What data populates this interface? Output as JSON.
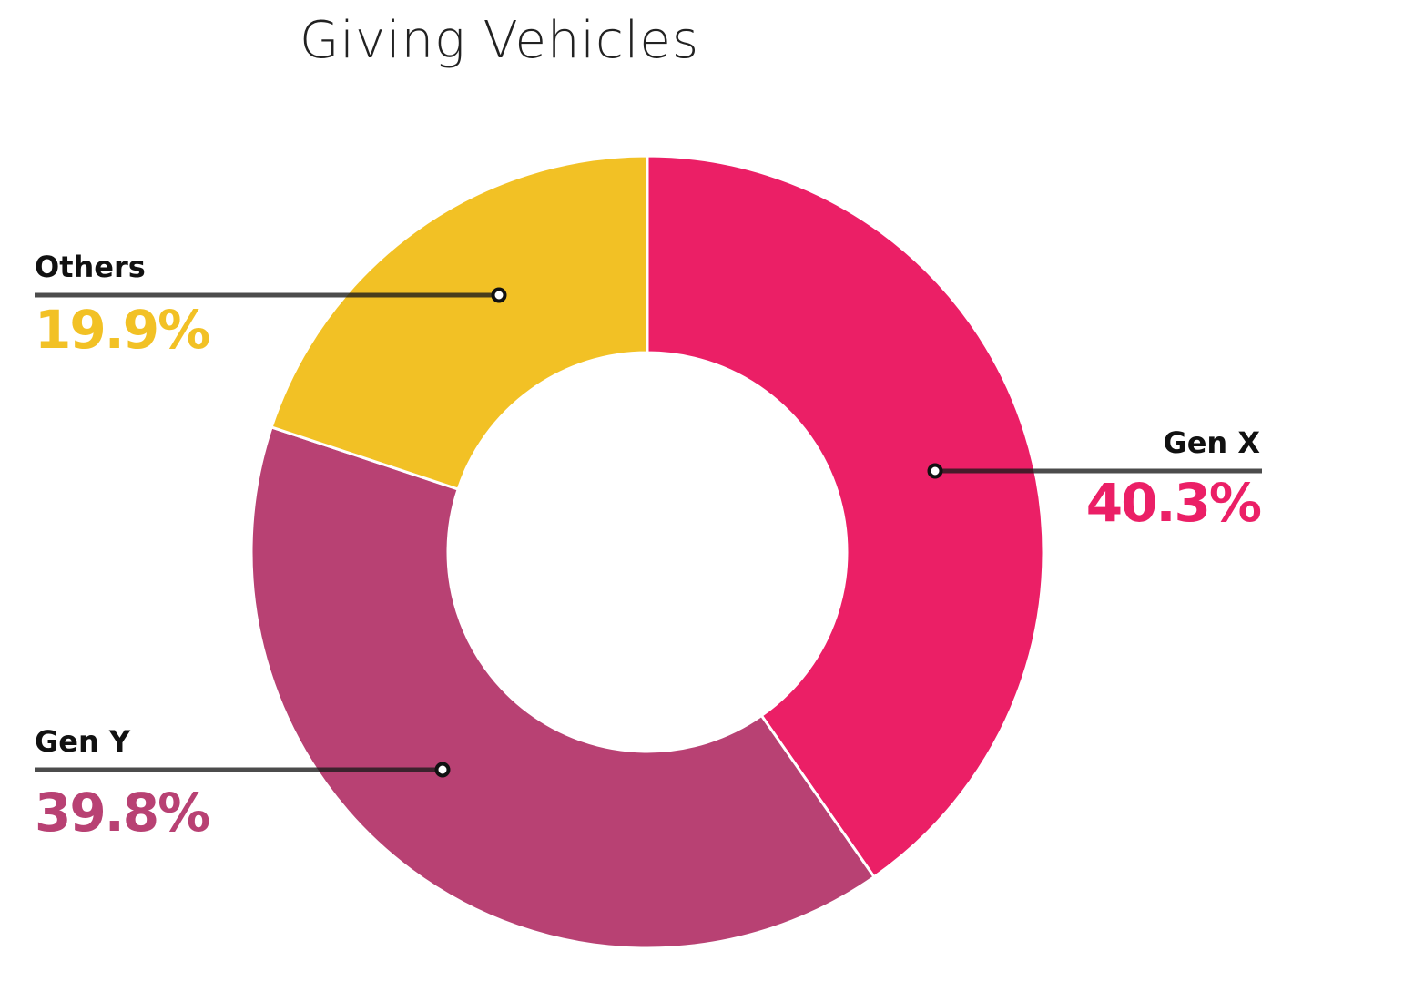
{
  "chart_data": {
    "type": "pie",
    "variant": "donut",
    "title": "Giving Vehicles",
    "slices": [
      {
        "label": "Gen X",
        "value": 40.3,
        "display": "40.3%",
        "color": "#EB1F66"
      },
      {
        "label": "Gen Y",
        "value": 39.8,
        "display": "39.8%",
        "color": "#B84173"
      },
      {
        "label": "Others",
        "value": 19.9,
        "display": "19.9%",
        "color": "#F2C125"
      }
    ],
    "start_angle": "12 o'clock",
    "direction": "clockwise"
  }
}
